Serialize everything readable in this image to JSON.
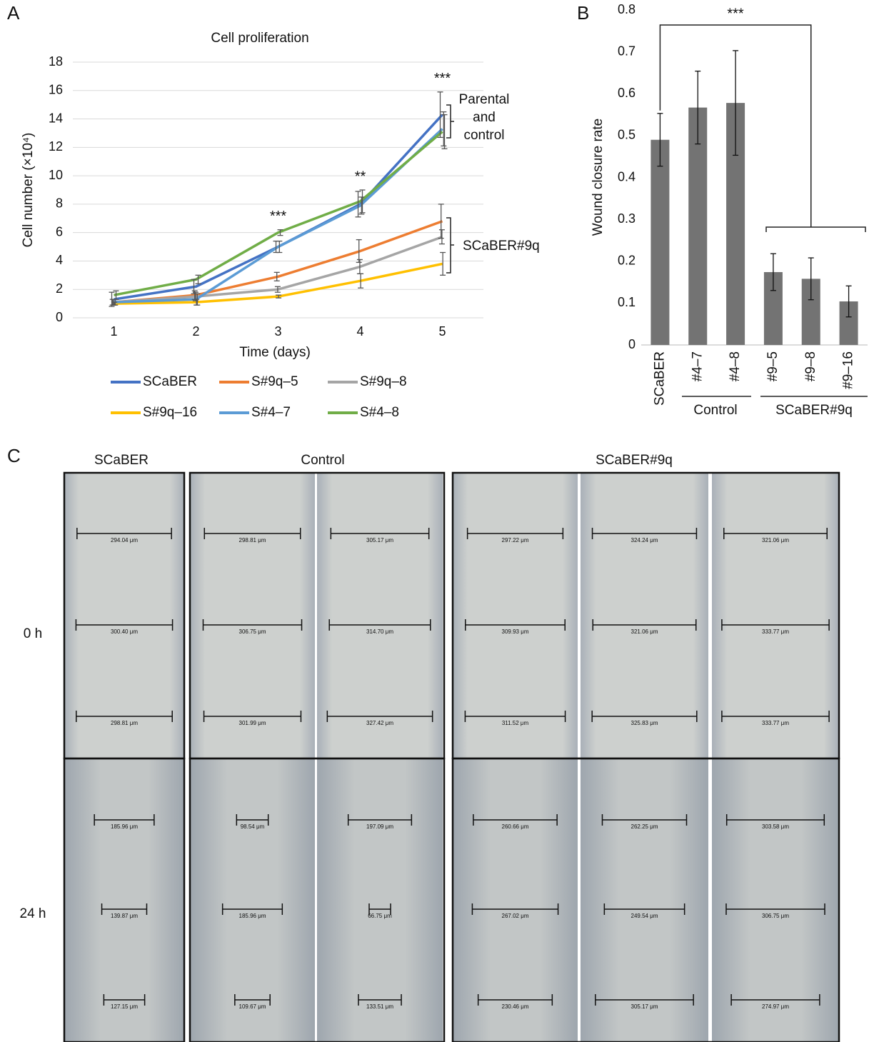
{
  "chart_data": [
    {
      "panel_label": "A",
      "type": "line",
      "title": "Cell proliferation",
      "x_label": "Time (days)",
      "y_label": "Cell number (×10⁴)",
      "categories": [
        "1",
        "2",
        "3",
        "4",
        "5"
      ],
      "series": [
        {
          "name": "SCaBER",
          "color": "#4472c4",
          "values": [
            1.3,
            2.2,
            5.0,
            8.0,
            14.3
          ],
          "errors": [
            0.5,
            0.5,
            0.4,
            0.9,
            1.6
          ]
        },
        {
          "name": "S#9q–5",
          "color": "#ed7d31",
          "values": [
            1.1,
            1.6,
            2.9,
            4.7,
            6.8
          ],
          "errors": [
            0.2,
            0.3,
            0.3,
            0.8,
            1.2
          ]
        },
        {
          "name": "S#9q–8",
          "color": "#a5a5a5",
          "values": [
            1.1,
            1.5,
            2.0,
            3.6,
            5.7
          ],
          "errors": [
            0.2,
            0.3,
            0.2,
            0.5,
            0.5
          ]
        },
        {
          "name": "S#9q–16",
          "color": "#ffc000",
          "values": [
            1.0,
            1.1,
            1.5,
            2.6,
            3.8
          ],
          "errors": [
            0.1,
            0.2,
            0.1,
            0.5,
            0.8
          ]
        },
        {
          "name": "S#4–7",
          "color": "#5b9bd5",
          "values": [
            1.1,
            1.3,
            5.0,
            7.9,
            13.3
          ],
          "errors": [
            0.2,
            0.4,
            0.4,
            0.6,
            1.2
          ]
        },
        {
          "name": "S#4–8",
          "color": "#70ad47",
          "values": [
            1.6,
            2.7,
            6.0,
            8.2,
            13.1
          ],
          "errors": [
            0.3,
            0.3,
            0.2,
            0.8,
            1.2
          ]
        }
      ],
      "ylim": [
        0,
        18
      ],
      "yticks": [
        0,
        2,
        4,
        6,
        8,
        10,
        12,
        14,
        16,
        18
      ],
      "grid": true,
      "annotations": [
        "***",
        "**",
        "***"
      ],
      "group_labels": [
        [
          "Parental",
          "and",
          "control"
        ],
        [
          "SCaBER#9q"
        ]
      ]
    },
    {
      "panel_label": "B",
      "type": "bar",
      "y_label": "Wound closure rate",
      "categories": [
        "SCaBER",
        "#4–7",
        "#4–8",
        "#9–5",
        "#9–8",
        "#9–16"
      ],
      "values": [
        0.49,
        0.567,
        0.578,
        0.174,
        0.158,
        0.104
      ],
      "errors": [
        0.063,
        0.087,
        0.125,
        0.044,
        0.05,
        0.037
      ],
      "color": "#737373",
      "ylim": [
        0,
        0.8
      ],
      "yticks": [
        0,
        0.1,
        0.2,
        0.3,
        0.4,
        0.5,
        0.6,
        0.7,
        0.8
      ],
      "grid": false,
      "annotations": [
        "***"
      ],
      "group_labels": [
        "Control",
        "SCaBER#9q"
      ]
    }
  ],
  "panel_c": {
    "panel_label": "C",
    "column_headers": [
      "SCaBER",
      "Control",
      "SCaBER#9q"
    ],
    "rows": [
      {
        "label": "0 h",
        "images": [
          [
            "294.04 μm",
            "300.40 μm",
            "298.81 μm"
          ],
          [
            "298.81 μm",
            "306.75 μm",
            "301.99 μm"
          ],
          [
            "305.17 μm",
            "314.70 μm",
            "327.42 μm"
          ],
          [
            "297.22 μm",
            "309.93 μm",
            "311.52 μm"
          ],
          [
            "324.24 μm",
            "321.06 μm",
            "325.83 μm"
          ],
          [
            "321.06 μm",
            "333.77 μm",
            "333.77 μm"
          ]
        ]
      },
      {
        "label": "24 h",
        "images": [
          [
            "185.96 μm",
            "139.87 μm",
            "127.15 μm"
          ],
          [
            "98.54 μm",
            "185.96 μm",
            "109.67 μm"
          ],
          [
            "197.09 μm",
            "66.75 μm",
            "133.51 μm"
          ],
          [
            "260.66 μm",
            "267.02 μm",
            "230.46 μm"
          ],
          [
            "262.25 μm",
            "249.54 μm",
            "305.17 μm"
          ],
          [
            "303.58 μm",
            "306.75 μm",
            "274.97 μm"
          ]
        ]
      }
    ]
  }
}
